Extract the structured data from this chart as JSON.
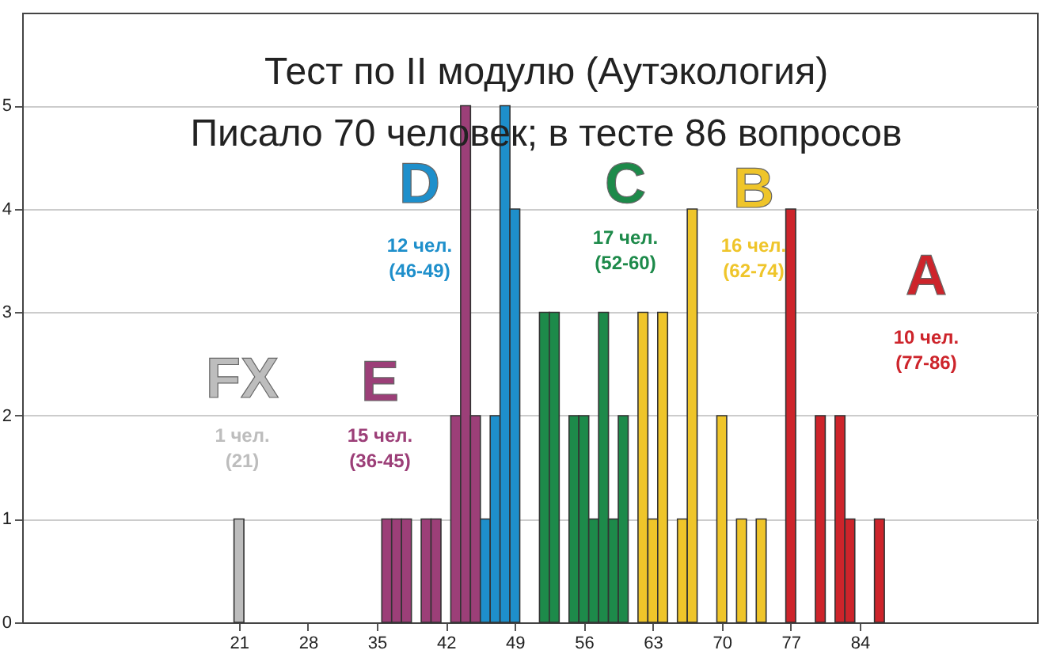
{
  "chart_data": {
    "type": "histogram",
    "title": "Тест по II модулю (Аутэкология)",
    "subtitle": "Писало 70 человек;       в тесте 86 вопросов",
    "xlim": [
      -1,
      102
    ],
    "xticks": [
      21,
      28,
      35,
      42,
      49,
      56,
      63,
      70,
      77,
      84
    ],
    "ylim": [
      0,
      5.9
    ],
    "yticks": [
      0,
      1,
      2,
      3,
      4,
      5
    ],
    "grid": "y",
    "bins": [
      20.5,
      21.5,
      22.5,
      23.5,
      24.5,
      25.5,
      26.5,
      27.5,
      28.5,
      29.5,
      30.5,
      31.5,
      32.5,
      33.5,
      34.5,
      35.5,
      36.5,
      37.5,
      38.5,
      39.5,
      40.5,
      41.5,
      42.5,
      43.5,
      44.5,
      45.5,
      46.5,
      47.5,
      48.5,
      49.5,
      50.5,
      51.5,
      52.5,
      53.5,
      54.5,
      55.5,
      56.5,
      57.5,
      58.5,
      59.5,
      60.5,
      61.5,
      62.5,
      63.5,
      64.5,
      65.5,
      66.5,
      67.5,
      68.5,
      69.5,
      70.5,
      71.5,
      72.5,
      73.5,
      74.5,
      75.5,
      76.5,
      77.5,
      78.5,
      79.5,
      80.5,
      81.5,
      82.5,
      83.5,
      84.5,
      85.5,
      86.5
    ],
    "series": [
      {
        "name": "FX",
        "color": "#bdbdbd",
        "values": [
          1,
          0,
          0,
          0,
          0,
          0,
          0,
          0,
          0,
          0,
          0,
          0,
          0,
          0,
          0,
          null,
          null,
          null,
          null,
          null,
          null,
          null,
          null,
          null,
          null,
          null,
          null,
          null,
          null,
          null,
          null,
          null,
          null,
          null,
          null,
          null,
          null,
          null,
          null,
          null,
          null,
          null,
          null,
          null,
          null,
          null,
          null,
          null,
          null,
          null,
          null,
          null,
          null,
          null,
          null,
          null,
          null,
          null,
          null,
          null,
          null,
          null,
          null,
          null,
          null,
          null
        ]
      },
      {
        "name": "E",
        "color": "#9c3f78",
        "values": [
          null,
          null,
          null,
          null,
          null,
          null,
          null,
          null,
          null,
          null,
          null,
          null,
          null,
          null,
          null,
          1,
          1,
          1,
          0,
          1,
          1,
          0,
          2,
          5,
          2,
          null,
          null,
          null,
          null,
          null,
          null,
          null,
          null,
          null,
          null,
          null,
          null,
          null,
          null,
          null,
          null,
          null,
          null,
          null,
          null,
          null,
          null,
          null,
          null,
          null,
          null,
          null,
          null,
          null,
          null,
          null,
          null,
          null,
          null,
          null,
          null,
          null,
          null,
          null,
          null,
          null
        ]
      },
      {
        "name": "D",
        "color": "#1e8fcb",
        "values": [
          null,
          null,
          null,
          null,
          null,
          null,
          null,
          null,
          null,
          null,
          null,
          null,
          null,
          null,
          null,
          null,
          null,
          null,
          null,
          null,
          null,
          null,
          null,
          null,
          null,
          1,
          2,
          5,
          4,
          0,
          0,
          null,
          null,
          null,
          null,
          null,
          null,
          null,
          null,
          null,
          null,
          null,
          null,
          null,
          null,
          null,
          null,
          null,
          null,
          null,
          null,
          null,
          null,
          null,
          null,
          null,
          null,
          null,
          null,
          null,
          null,
          null,
          null,
          null,
          null,
          null
        ]
      },
      {
        "name": "C",
        "color": "#1d8a4a",
        "values": [
          null,
          null,
          null,
          null,
          null,
          null,
          null,
          null,
          null,
          null,
          null,
          null,
          null,
          null,
          null,
          null,
          null,
          null,
          null,
          null,
          null,
          null,
          null,
          null,
          null,
          null,
          null,
          null,
          null,
          null,
          null,
          3,
          3,
          0,
          2,
          2,
          1,
          3,
          1,
          2,
          0,
          null,
          null,
          null,
          null,
          null,
          null,
          null,
          null,
          null,
          null,
          null,
          null,
          null,
          null,
          null,
          null,
          null,
          null,
          null,
          null,
          null,
          null,
          null,
          null,
          null
        ]
      },
      {
        "name": "B",
        "color": "#efc52a",
        "values": [
          null,
          null,
          null,
          null,
          null,
          null,
          null,
          null,
          null,
          null,
          null,
          null,
          null,
          null,
          null,
          null,
          null,
          null,
          null,
          null,
          null,
          null,
          null,
          null,
          null,
          null,
          null,
          null,
          null,
          null,
          null,
          null,
          null,
          null,
          null,
          null,
          null,
          null,
          null,
          null,
          null,
          3,
          1,
          3,
          0,
          1,
          4,
          0,
          0,
          2,
          0,
          1,
          0,
          1,
          0,
          0,
          null,
          null,
          null,
          null,
          null,
          null,
          null,
          null,
          null,
          null
        ]
      },
      {
        "name": "A",
        "color": "#cd242b",
        "values": [
          null,
          null,
          null,
          null,
          null,
          null,
          null,
          null,
          null,
          null,
          null,
          null,
          null,
          null,
          null,
          null,
          null,
          null,
          null,
          null,
          null,
          null,
          null,
          null,
          null,
          null,
          null,
          null,
          null,
          null,
          null,
          null,
          null,
          null,
          null,
          null,
          null,
          null,
          null,
          null,
          null,
          null,
          null,
          null,
          null,
          null,
          null,
          null,
          null,
          null,
          null,
          null,
          null,
          null,
          null,
          null,
          4,
          0,
          0,
          2,
          0,
          2,
          1,
          0,
          0,
          1
        ]
      }
    ],
    "annotations": [
      "1 чел.\n(21)",
      "15 чел.\n(36-45)",
      "12 чел.\n(46-49)",
      "17 чел.\n(52-60)",
      "16 чел.\n(62-74)",
      "10 чел.\n(77-86)"
    ]
  }
}
